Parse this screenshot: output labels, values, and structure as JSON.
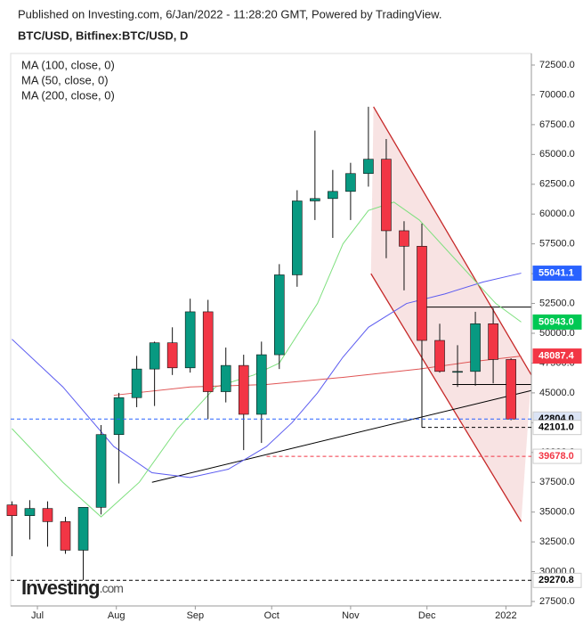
{
  "chart_data": {
    "type": "candlestick",
    "header": "Published on Investing.com, 6/Jan/2022 - 11:28:20 GMT, Powered by TradingView.",
    "title": "BTC/USD, Bitfinex:BTC/USD, D",
    "logo": [
      "Investing",
      ".com"
    ],
    "xlim": [
      -10.5,
      194
    ],
    "xticks": [
      {
        "value": 0,
        "label": "Jul"
      },
      {
        "value": 31,
        "label": "Aug"
      },
      {
        "value": 62,
        "label": "Sep"
      },
      {
        "value": 92,
        "label": "Oct"
      },
      {
        "value": 123,
        "label": "Nov"
      },
      {
        "value": 153,
        "label": "Dec"
      },
      {
        "value": 184,
        "label": "2022"
      }
    ],
    "ylim": [
      27500,
      72500
    ],
    "yticks": [
      {
        "value": 27500,
        "label": "27500.0"
      },
      {
        "value": 30000,
        "label": "30000.0"
      },
      {
        "value": 32500,
        "label": "32500.0"
      },
      {
        "value": 35000,
        "label": "35000.0"
      },
      {
        "value": 37500,
        "label": "37500.0"
      },
      {
        "value": 40000,
        "label": "40000.0"
      },
      {
        "value": 42500,
        "label": "42500.0"
      },
      {
        "value": 45000,
        "label": "45000.0"
      },
      {
        "value": 47500,
        "label": "47500.0"
      },
      {
        "value": 50000,
        "label": "50000.0"
      },
      {
        "value": 52500,
        "label": "52500.0"
      },
      {
        "value": 55000,
        "label": "55000.0"
      },
      {
        "value": 57500,
        "label": "57500.0"
      },
      {
        "value": 60000,
        "label": "60000.0"
      },
      {
        "value": 62500,
        "label": "62500.0"
      },
      {
        "value": 65000,
        "label": "65000.0"
      },
      {
        "value": 67500,
        "label": "67500.0"
      },
      {
        "value": 70000,
        "label": "70000.0"
      },
      {
        "value": 72500,
        "label": "72500.0"
      }
    ],
    "up_color": "#089981",
    "down_color": "#f23645",
    "candles": {
      "x": [
        -10,
        -3,
        4,
        11,
        18,
        25,
        32,
        39,
        46,
        53,
        60,
        67,
        74,
        81,
        88,
        95,
        102,
        109,
        116,
        123,
        130,
        137,
        144,
        151,
        158,
        165,
        172,
        179,
        186
      ],
      "open": [
        35600,
        34700,
        35300,
        34200,
        31800,
        35400,
        41500,
        44600,
        47000,
        49200,
        47100,
        51800,
        45100,
        47300,
        43200,
        48200,
        54900,
        61100,
        61300,
        61900,
        63400,
        64600,
        58600,
        57300,
        49400,
        46800,
        46800,
        50800,
        47800
      ],
      "high": [
        35900,
        36000,
        35900,
        34600,
        35400,
        42300,
        45000,
        48100,
        49300,
        50500,
        52900,
        52800,
        48800,
        48200,
        49300,
        55800,
        62000,
        67000,
        63700,
        64300,
        69000,
        66300,
        59400,
        59200,
        50800,
        49000,
        51800,
        52100,
        47900
      ],
      "low": [
        31300,
        32700,
        32100,
        31500,
        29300,
        34800,
        37400,
        43800,
        43900,
        46500,
        46700,
        42800,
        44200,
        40200,
        40800,
        47000,
        53900,
        59500,
        58000,
        59500,
        62300,
        56300,
        53600,
        42100,
        46700,
        45500,
        45600,
        45800,
        42700
      ],
      "close": [
        34700,
        35300,
        34200,
        31800,
        35400,
        41500,
        44600,
        47000,
        49200,
        47100,
        51800,
        45100,
        47300,
        43200,
        48200,
        54900,
        61100,
        61300,
        61900,
        63400,
        64600,
        58600,
        57300,
        49400,
        46800,
        46800,
        50800,
        47800,
        42804
      ]
    },
    "series": [
      {
        "name": "MA (100, close, 0)",
        "color": "#5b5bf0",
        "x": [
          -10,
          10,
          30,
          45,
          60,
          75,
          90,
          100,
          110,
          120,
          130,
          145,
          160,
          175,
          190
        ],
        "values": [
          49500,
          45500,
          40500,
          38300,
          37900,
          38600,
          40500,
          42500,
          45000,
          48000,
          50500,
          52500,
          53300,
          54300,
          55041.1
        ]
      },
      {
        "name": "MA (50, close, 0)",
        "color": "#7ee07e",
        "x": [
          -10,
          10,
          25,
          40,
          55,
          70,
          85,
          95,
          110,
          120,
          130,
          140,
          150,
          165,
          180,
          190
        ],
        "values": [
          42000,
          37500,
          34600,
          37500,
          42000,
          45500,
          46500,
          47500,
          52500,
          57500,
          60300,
          61000,
          59500,
          56000,
          52500,
          50943
        ]
      },
      {
        "name": "MA (200, close, 0)",
        "color": "#e05555",
        "x": [
          30,
          60,
          90,
          120,
          150,
          170,
          190
        ],
        "values": [
          44800,
          45500,
          45700,
          46300,
          47000,
          47600,
          48087.4
        ]
      }
    ],
    "channel": {
      "color": "#c62828",
      "upper": {
        "x": [
          132,
          194
        ],
        "y": [
          69000,
          46500
        ]
      },
      "lower": {
        "x": [
          131,
          190
        ],
        "y": [
          55000,
          34200
        ]
      }
    },
    "lines": [
      {
        "color": "#000000",
        "x": [
          45,
          194
        ],
        "y": [
          37500,
          45200
        ]
      },
      {
        "color": "#000000",
        "x": [
          151,
          194
        ],
        "y": [
          52200,
          52200
        ]
      },
      {
        "color": "#000000",
        "x": [
          163,
          194
        ],
        "y": [
          45700,
          45700
        ]
      },
      {
        "color": "#000000",
        "x": [
          151,
          151
        ],
        "y": [
          52200,
          42101
        ]
      }
    ],
    "price_labels": [
      {
        "value": 55041.1,
        "color": "#2962ff",
        "filled": true
      },
      {
        "value": 50943,
        "label": "50943.0",
        "color": "#00c853",
        "filled": true
      },
      {
        "value": 48087.4,
        "color": "#f23645",
        "filled": true
      },
      {
        "value": 42804,
        "label": "42804.0",
        "color": "#2962ff",
        "filled": false,
        "line_from": -10.5
      },
      {
        "value": 42101,
        "label": "42101.0",
        "color": "#000000",
        "filled": false,
        "line_from": 151
      },
      {
        "value": 39678,
        "label": "39678.0",
        "color": "#f23645",
        "filled": false,
        "line_from": 90
      },
      {
        "value": 29270.8,
        "color": "#000000",
        "filled": false,
        "line_from": -10.5
      }
    ]
  }
}
